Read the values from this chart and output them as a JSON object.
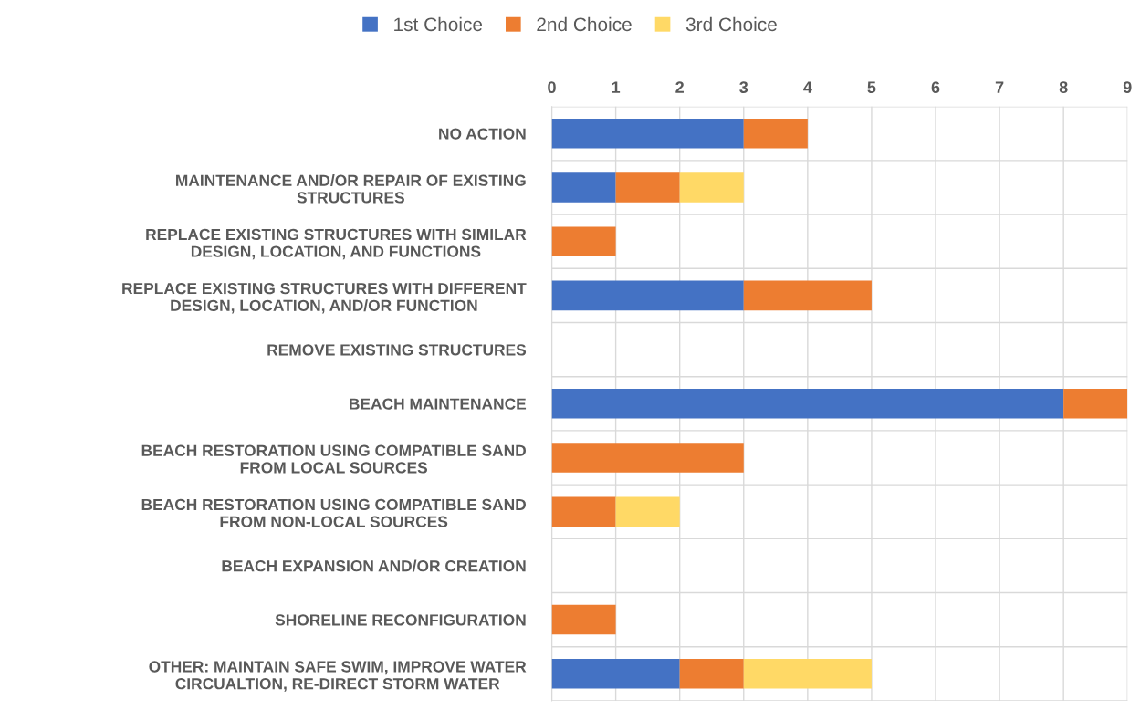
{
  "chart_data": {
    "type": "bar",
    "orientation": "horizontal",
    "stacked": true,
    "categories": [
      "NO ACTION",
      "MAINTENANCE AND/OR REPAIR OF EXISTING\nSTRUCTURES",
      "REPLACE EXISTING STRUCTURES WITH SIMILAR\nDESIGN, LOCATION, AND FUNCTIONS",
      "REPLACE EXISTING STRUCTURES WITH DIFFERENT\nDESIGN, LOCATION, AND/OR FUNCTION",
      "REMOVE EXISTING STRUCTURES",
      "BEACH MAINTENANCE",
      "BEACH RESTORATION USING COMPATIBLE SAND\nFROM LOCAL SOURCES",
      "BEACH RESTORATION USING COMPATIBLE SAND\nFROM NON-LOCAL SOURCES",
      "BEACH EXPANSION AND/OR CREATION",
      "SHORELINE RECONFIGURATION",
      "OTHER: MAINTAIN SAFE SWIM, IMPROVE WATER\nCIRCUALTION, RE-DIRECT STORM WATER"
    ],
    "series": [
      {
        "name": "1st Choice",
        "color": "#4472c4",
        "values": [
          3,
          1,
          0,
          3,
          0,
          8,
          0,
          0,
          0,
          0,
          2
        ]
      },
      {
        "name": "2nd Choice",
        "color": "#ed7d31",
        "values": [
          1,
          1,
          1,
          2,
          0,
          1,
          3,
          1,
          0,
          1,
          1
        ]
      },
      {
        "name": "3rd Choice",
        "color": "#ffd966",
        "values": [
          0,
          1,
          0,
          0,
          0,
          0,
          0,
          1,
          0,
          0,
          2
        ]
      }
    ],
    "xlim": [
      0,
      9
    ],
    "xticks": [
      0,
      1,
      2,
      3,
      4,
      5,
      6,
      7,
      8,
      9
    ],
    "grid": true,
    "legend": "top"
  }
}
